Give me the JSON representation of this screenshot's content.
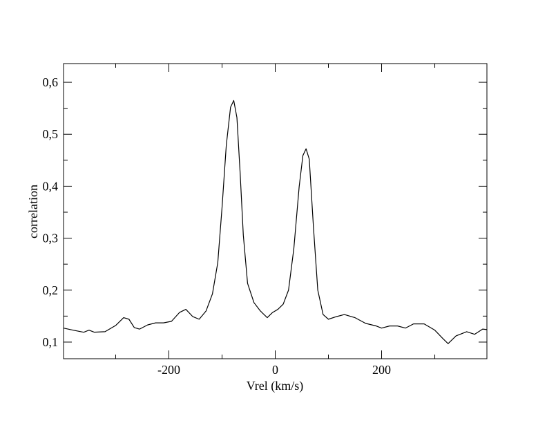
{
  "chart_data": {
    "type": "line",
    "x_label": "Vrel (km/s)",
    "y_label": "correlation",
    "x": [
      -398,
      -380,
      -360,
      -350,
      -340,
      -320,
      -300,
      -285,
      -275,
      -265,
      -255,
      -240,
      -225,
      -210,
      -195,
      -180,
      -168,
      -155,
      -143,
      -130,
      -118,
      -108,
      -100,
      -92,
      -84,
      -78,
      -72,
      -66,
      -60,
      -52,
      -40,
      -28,
      -15,
      -5,
      5,
      15,
      25,
      35,
      45,
      52,
      58,
      64,
      72,
      80,
      90,
      100,
      115,
      130,
      150,
      170,
      190,
      200,
      215,
      230,
      245,
      260,
      280,
      300,
      315,
      325,
      340,
      360,
      375,
      390,
      398
    ],
    "series": [
      {
        "name": "correlation",
        "color": "#000000",
        "values": [
          0.127,
          0.123,
          0.119,
          0.123,
          0.119,
          0.12,
          0.132,
          0.147,
          0.144,
          0.128,
          0.125,
          0.133,
          0.137,
          0.137,
          0.14,
          0.157,
          0.163,
          0.149,
          0.144,
          0.16,
          0.193,
          0.253,
          0.359,
          0.479,
          0.552,
          0.565,
          0.532,
          0.426,
          0.306,
          0.213,
          0.176,
          0.16,
          0.147,
          0.157,
          0.163,
          0.173,
          0.2,
          0.28,
          0.399,
          0.459,
          0.472,
          0.452,
          0.319,
          0.2,
          0.153,
          0.144,
          0.149,
          0.153,
          0.147,
          0.136,
          0.131,
          0.127,
          0.131,
          0.131,
          0.127,
          0.135,
          0.135,
          0.123,
          0.107,
          0.097,
          0.112,
          0.12,
          0.115,
          0.125,
          0.124
        ]
      }
    ],
    "xlim": [
      -398,
      398
    ],
    "xticks": [
      -200,
      0,
      200
    ],
    "xminorticks": [
      -300,
      -100,
      100,
      300
    ],
    "ylim": [
      0.068,
      0.636
    ],
    "yticks": [
      {
        "value": 0.1,
        "label": "0,1"
      },
      {
        "value": 0.2,
        "label": "0,2"
      },
      {
        "value": 0.3,
        "label": "0,3"
      },
      {
        "value": 0.4,
        "label": "0,4"
      },
      {
        "value": 0.5,
        "label": "0,5"
      },
      {
        "value": 0.6,
        "label": "0,6"
      }
    ],
    "yminorticks": [
      0.15,
      0.25,
      0.35,
      0.45,
      0.55
    ],
    "grid": false
  }
}
